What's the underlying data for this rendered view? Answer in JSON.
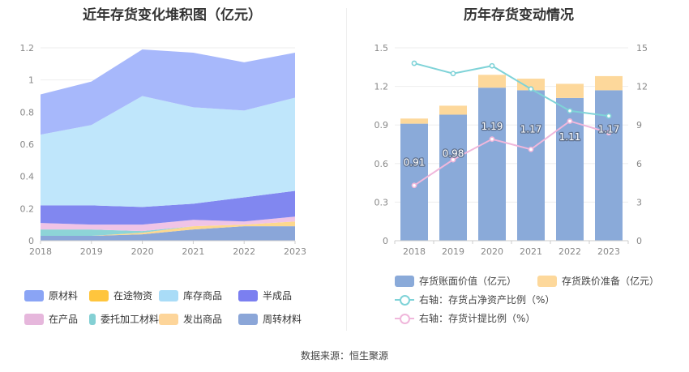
{
  "left_chart": {
    "title": "近年存货变化堆积图（亿元）",
    "chart_data": {
      "type": "area",
      "stacked": true,
      "title": "近年存货变化堆积图（亿元）",
      "categories": [
        "2018",
        "2019",
        "2020",
        "2021",
        "2022",
        "2023"
      ],
      "ylim": [
        0,
        1.2
      ],
      "yticks": [
        "0",
        "0.2",
        "0.4",
        "0.6",
        "0.8",
        "1",
        "1.2"
      ],
      "series": [
        {
          "name": "周转材料",
          "color": "#8aa6d9",
          "values": [
            0.03,
            0.03,
            0.04,
            0.07,
            0.09,
            0.09
          ]
        },
        {
          "name": "发出商品",
          "color": "#fdd88e",
          "values": [
            0.0,
            0.0,
            0.01,
            0.02,
            0.01,
            0.03
          ]
        },
        {
          "name": "委托加工材料",
          "color": "#8dd4d7",
          "values": [
            0.04,
            0.04,
            0.01,
            0.0,
            0.0,
            0.0
          ]
        },
        {
          "name": "在产品",
          "color": "#f0c4e6",
          "values": [
            0.04,
            0.03,
            0.04,
            0.04,
            0.02,
            0.03
          ]
        },
        {
          "name": "半成品",
          "color": "#8187f0",
          "values": [
            0.11,
            0.12,
            0.11,
            0.1,
            0.15,
            0.16
          ]
        },
        {
          "name": "库存商品",
          "color": "#bfe6fb",
          "values": [
            0.44,
            0.5,
            0.69,
            0.6,
            0.54,
            0.58
          ]
        },
        {
          "name": "在途物资",
          "color": "#ffc53d",
          "values": [
            0.0,
            0.0,
            0.0,
            0.0,
            0.0,
            0.0
          ]
        },
        {
          "name": "原材料",
          "color": "#a7b8fb",
          "values": [
            0.25,
            0.27,
            0.29,
            0.34,
            0.3,
            0.28
          ]
        }
      ]
    },
    "legend": [
      {
        "name": "原材料",
        "color": "#8aa4f5"
      },
      {
        "name": "在途物资",
        "color": "#ffc53d"
      },
      {
        "name": "库存商品",
        "color": "#a9dcf7"
      },
      {
        "name": "半成品",
        "color": "#7b7ff0"
      },
      {
        "name": "在产品",
        "color": "#e6b7dc"
      },
      {
        "name": "委托加工材料",
        "color": "#84d0d4"
      },
      {
        "name": "发出商品",
        "color": "#fdd59a"
      },
      {
        "name": "周转材料",
        "color": "#8ba6d8"
      }
    ]
  },
  "right_chart": {
    "title": "历年存货变动情况",
    "chart_data": {
      "type": "bar",
      "title": "历年存货变动情况",
      "categories": [
        "2018",
        "2019",
        "2020",
        "2021",
        "2022",
        "2023"
      ],
      "ylim": [
        0,
        1.5
      ],
      "yticks": [
        "0",
        "0.3",
        "0.6",
        "0.9",
        "1.2",
        "1.5"
      ],
      "y2lim": [
        0,
        15
      ],
      "y2ticks": [
        "0",
        "3",
        "6",
        "9",
        "12",
        "15"
      ],
      "series": [
        {
          "name": "存货账面价值（亿元）",
          "type": "bar",
          "color": "#8aaad9",
          "values": [
            0.91,
            0.98,
            1.19,
            1.17,
            1.11,
            1.17
          ],
          "labels": [
            "0.91",
            "0.98",
            "1.19",
            "1.17",
            "1.11",
            "1.17"
          ]
        },
        {
          "name": "存货跌价准备（亿元）",
          "type": "bar",
          "color": "#fdd89b",
          "values": [
            0.04,
            0.07,
            0.1,
            0.09,
            0.11,
            0.11
          ]
        },
        {
          "name": "右轴：存货占净资产比例（%）",
          "type": "line",
          "axis": "right",
          "color": "#7fd3d8",
          "values": [
            13.8,
            13.0,
            13.6,
            11.8,
            10.1,
            9.7
          ]
        },
        {
          "name": "右轴：存货计提比例（%）",
          "type": "line",
          "axis": "right",
          "color": "#f0b7db",
          "values": [
            4.3,
            6.3,
            7.9,
            7.1,
            9.3,
            8.4
          ]
        }
      ]
    }
  },
  "source": "数据来源：恒生聚源"
}
